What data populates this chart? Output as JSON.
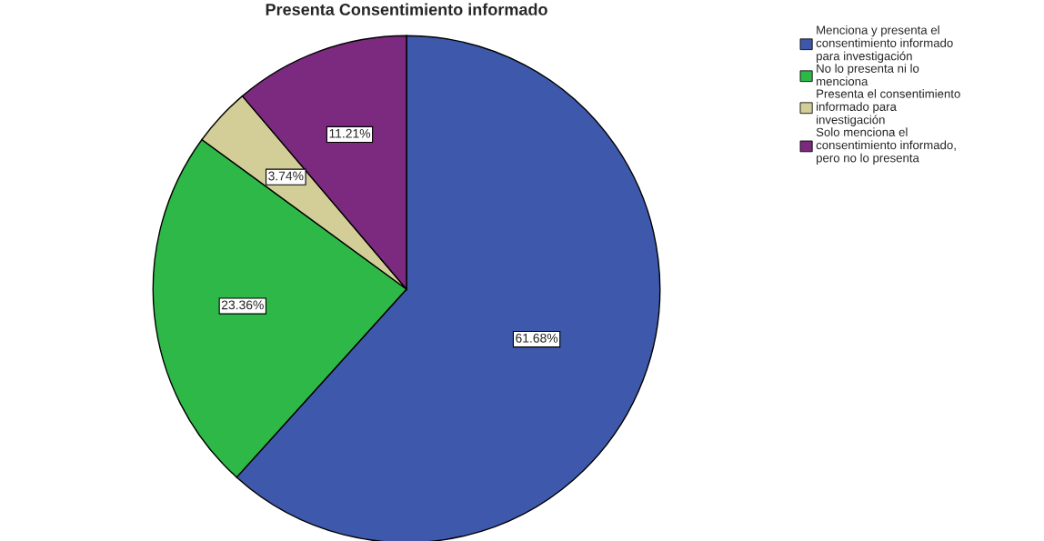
{
  "chart_data": {
    "type": "pie",
    "title": "Presenta Consentimiento informado",
    "categories": [
      "Menciona y presenta el\nconsentimiento informado\npara investigación",
      "No lo presenta ni lo\nmenciona",
      "Presenta el consentimiento\ninformado para\ninvestigación",
      "Solo menciona el\nconsentimiento informado,\npero no lo presenta"
    ],
    "values": [
      61.68,
      23.36,
      3.74,
      11.21
    ],
    "colors": [
      "#3e58ac",
      "#2eb848",
      "#d3ce97",
      "#7b2a7f"
    ],
    "value_labels": [
      "61.68%",
      "23.36%",
      "3.74%",
      "11.21%"
    ],
    "legend": "right"
  }
}
